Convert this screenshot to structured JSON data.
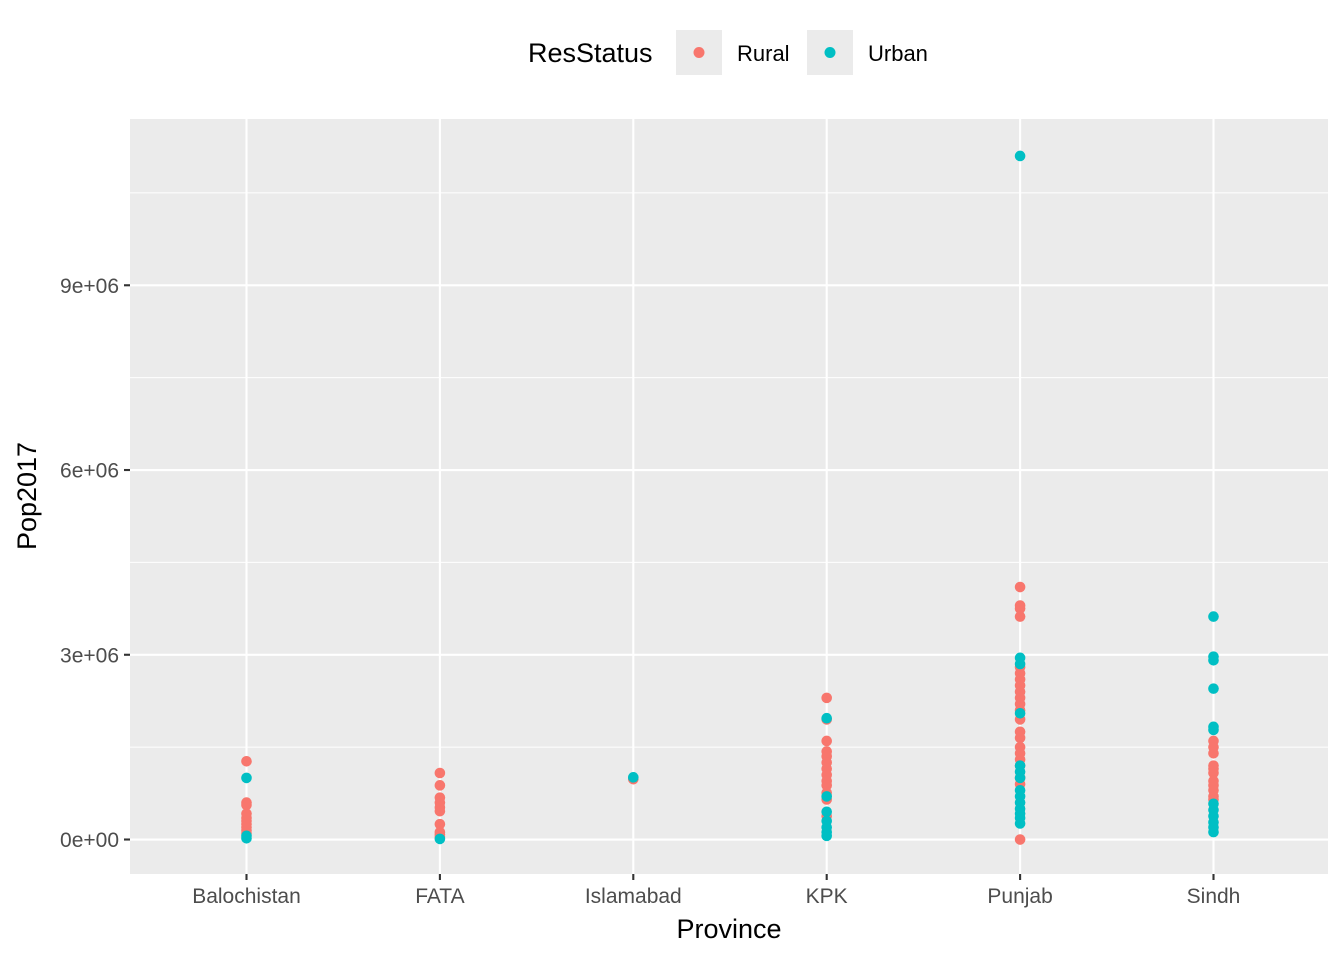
{
  "chart_data": {
    "type": "scatter",
    "xlabel": "Province",
    "ylabel": "Pop2017",
    "categories": [
      "Balochistan",
      "FATA",
      "Islamabad",
      "KPK",
      "Punjab",
      "Sindh"
    ],
    "y_ticks": [
      0,
      3000000,
      6000000,
      9000000
    ],
    "y_tick_labels": [
      "0e+00",
      "3e+06",
      "6e+06",
      "9e+06"
    ],
    "ylim": [
      -560000,
      11700000
    ],
    "grid": true,
    "legend": {
      "title": "ResStatus",
      "position": "top",
      "entries": [
        {
          "label": "Rural",
          "color": "#F8766D"
        },
        {
          "label": "Urban",
          "color": "#00BFC4"
        }
      ]
    },
    "series": [
      {
        "name": "Rural",
        "color": "#F8766D",
        "points": [
          {
            "x": "Balochistan",
            "y": 1270000
          },
          {
            "x": "Balochistan",
            "y": 600000
          },
          {
            "x": "Balochistan",
            "y": 560000
          },
          {
            "x": "Balochistan",
            "y": 420000
          },
          {
            "x": "Balochistan",
            "y": 350000
          },
          {
            "x": "Balochistan",
            "y": 300000
          },
          {
            "x": "Balochistan",
            "y": 250000
          },
          {
            "x": "Balochistan",
            "y": 200000
          },
          {
            "x": "Balochistan",
            "y": 150000
          },
          {
            "x": "Balochistan",
            "y": 100000
          },
          {
            "x": "FATA",
            "y": 1080000
          },
          {
            "x": "FATA",
            "y": 880000
          },
          {
            "x": "FATA",
            "y": 680000
          },
          {
            "x": "FATA",
            "y": 600000
          },
          {
            "x": "FATA",
            "y": 520000
          },
          {
            "x": "FATA",
            "y": 460000
          },
          {
            "x": "FATA",
            "y": 250000
          },
          {
            "x": "FATA",
            "y": 120000
          },
          {
            "x": "FATA",
            "y": 80000
          },
          {
            "x": "FATA",
            "y": 40000
          },
          {
            "x": "Islamabad",
            "y": 980000
          },
          {
            "x": "KPK",
            "y": 2300000
          },
          {
            "x": "KPK",
            "y": 1950000
          },
          {
            "x": "KPK",
            "y": 1600000
          },
          {
            "x": "KPK",
            "y": 1430000
          },
          {
            "x": "KPK",
            "y": 1350000
          },
          {
            "x": "KPK",
            "y": 1250000
          },
          {
            "x": "KPK",
            "y": 1150000
          },
          {
            "x": "KPK",
            "y": 1050000
          },
          {
            "x": "KPK",
            "y": 950000
          },
          {
            "x": "KPK",
            "y": 880000
          },
          {
            "x": "KPK",
            "y": 760000
          },
          {
            "x": "KPK",
            "y": 650000
          },
          {
            "x": "KPK",
            "y": 380000
          },
          {
            "x": "Punjab",
            "y": 4100000
          },
          {
            "x": "Punjab",
            "y": 3800000
          },
          {
            "x": "Punjab",
            "y": 3750000
          },
          {
            "x": "Punjab",
            "y": 3620000
          },
          {
            "x": "Punjab",
            "y": 2800000
          },
          {
            "x": "Punjab",
            "y": 2700000
          },
          {
            "x": "Punjab",
            "y": 2600000
          },
          {
            "x": "Punjab",
            "y": 2500000
          },
          {
            "x": "Punjab",
            "y": 2400000
          },
          {
            "x": "Punjab",
            "y": 2300000
          },
          {
            "x": "Punjab",
            "y": 2200000
          },
          {
            "x": "Punjab",
            "y": 2100000
          },
          {
            "x": "Punjab",
            "y": 1950000
          },
          {
            "x": "Punjab",
            "y": 1750000
          },
          {
            "x": "Punjab",
            "y": 1650000
          },
          {
            "x": "Punjab",
            "y": 1500000
          },
          {
            "x": "Punjab",
            "y": 1400000
          },
          {
            "x": "Punjab",
            "y": 1300000
          },
          {
            "x": "Punjab",
            "y": 1200000
          },
          {
            "x": "Punjab",
            "y": 1000000
          },
          {
            "x": "Punjab",
            "y": 900000
          },
          {
            "x": "Punjab",
            "y": 0
          },
          {
            "x": "Sindh",
            "y": 1600000
          },
          {
            "x": "Sindh",
            "y": 1500000
          },
          {
            "x": "Sindh",
            "y": 1400000
          },
          {
            "x": "Sindh",
            "y": 1200000
          },
          {
            "x": "Sindh",
            "y": 1150000
          },
          {
            "x": "Sindh",
            "y": 1080000
          },
          {
            "x": "Sindh",
            "y": 950000
          },
          {
            "x": "Sindh",
            "y": 880000
          },
          {
            "x": "Sindh",
            "y": 800000
          },
          {
            "x": "Sindh",
            "y": 700000
          },
          {
            "x": "Sindh",
            "y": 650000
          }
        ]
      },
      {
        "name": "Urban",
        "color": "#00BFC4",
        "points": [
          {
            "x": "Balochistan",
            "y": 1000000
          },
          {
            "x": "Balochistan",
            "y": 60000
          },
          {
            "x": "Balochistan",
            "y": 20000
          },
          {
            "x": "FATA",
            "y": 10000
          },
          {
            "x": "Islamabad",
            "y": 1010000
          },
          {
            "x": "KPK",
            "y": 1970000
          },
          {
            "x": "KPK",
            "y": 700000
          },
          {
            "x": "KPK",
            "y": 450000
          },
          {
            "x": "KPK",
            "y": 300000
          },
          {
            "x": "KPK",
            "y": 200000
          },
          {
            "x": "KPK",
            "y": 120000
          },
          {
            "x": "KPK",
            "y": 60000
          },
          {
            "x": "Punjab",
            "y": 11100000
          },
          {
            "x": "Punjab",
            "y": 2950000
          },
          {
            "x": "Punjab",
            "y": 2850000
          },
          {
            "x": "Punjab",
            "y": 2050000
          },
          {
            "x": "Punjab",
            "y": 1200000
          },
          {
            "x": "Punjab",
            "y": 1100000
          },
          {
            "x": "Punjab",
            "y": 1000000
          },
          {
            "x": "Punjab",
            "y": 800000
          },
          {
            "x": "Punjab",
            "y": 700000
          },
          {
            "x": "Punjab",
            "y": 600000
          },
          {
            "x": "Punjab",
            "y": 500000
          },
          {
            "x": "Punjab",
            "y": 420000
          },
          {
            "x": "Punjab",
            "y": 350000
          },
          {
            "x": "Punjab",
            "y": 260000
          },
          {
            "x": "Sindh",
            "y": 3620000
          },
          {
            "x": "Sindh",
            "y": 2970000
          },
          {
            "x": "Sindh",
            "y": 2910000
          },
          {
            "x": "Sindh",
            "y": 2450000
          },
          {
            "x": "Sindh",
            "y": 1830000
          },
          {
            "x": "Sindh",
            "y": 1780000
          },
          {
            "x": "Sindh",
            "y": 580000
          },
          {
            "x": "Sindh",
            "y": 480000
          },
          {
            "x": "Sindh",
            "y": 380000
          },
          {
            "x": "Sindh",
            "y": 280000
          },
          {
            "x": "Sindh",
            "y": 200000
          },
          {
            "x": "Sindh",
            "y": 120000
          }
        ]
      }
    ]
  }
}
